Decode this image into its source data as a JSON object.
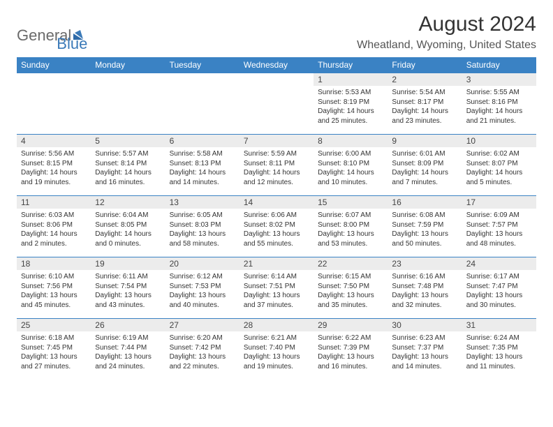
{
  "brand": {
    "part1": "General",
    "part2": "Blue"
  },
  "title": "August 2024",
  "location": "Wheatland, Wyoming, United States",
  "colors": {
    "header_bg": "#3a82c4",
    "header_text": "#ffffff",
    "daynum_bg": "#ececec",
    "border": "#3a82c4",
    "logo_gray": "#6a6a6a",
    "logo_blue": "#3b7ab8"
  },
  "weekdays": [
    "Sunday",
    "Monday",
    "Tuesday",
    "Wednesday",
    "Thursday",
    "Friday",
    "Saturday"
  ],
  "weeks": [
    [
      null,
      null,
      null,
      null,
      {
        "n": "1",
        "sunrise": "5:53 AM",
        "sunset": "8:19 PM",
        "daylight": "14 hours and 25 minutes."
      },
      {
        "n": "2",
        "sunrise": "5:54 AM",
        "sunset": "8:17 PM",
        "daylight": "14 hours and 23 minutes."
      },
      {
        "n": "3",
        "sunrise": "5:55 AM",
        "sunset": "8:16 PM",
        "daylight": "14 hours and 21 minutes."
      }
    ],
    [
      {
        "n": "4",
        "sunrise": "5:56 AM",
        "sunset": "8:15 PM",
        "daylight": "14 hours and 19 minutes."
      },
      {
        "n": "5",
        "sunrise": "5:57 AM",
        "sunset": "8:14 PM",
        "daylight": "14 hours and 16 minutes."
      },
      {
        "n": "6",
        "sunrise": "5:58 AM",
        "sunset": "8:13 PM",
        "daylight": "14 hours and 14 minutes."
      },
      {
        "n": "7",
        "sunrise": "5:59 AM",
        "sunset": "8:11 PM",
        "daylight": "14 hours and 12 minutes."
      },
      {
        "n": "8",
        "sunrise": "6:00 AM",
        "sunset": "8:10 PM",
        "daylight": "14 hours and 10 minutes."
      },
      {
        "n": "9",
        "sunrise": "6:01 AM",
        "sunset": "8:09 PM",
        "daylight": "14 hours and 7 minutes."
      },
      {
        "n": "10",
        "sunrise": "6:02 AM",
        "sunset": "8:07 PM",
        "daylight": "14 hours and 5 minutes."
      }
    ],
    [
      {
        "n": "11",
        "sunrise": "6:03 AM",
        "sunset": "8:06 PM",
        "daylight": "14 hours and 2 minutes."
      },
      {
        "n": "12",
        "sunrise": "6:04 AM",
        "sunset": "8:05 PM",
        "daylight": "14 hours and 0 minutes."
      },
      {
        "n": "13",
        "sunrise": "6:05 AM",
        "sunset": "8:03 PM",
        "daylight": "13 hours and 58 minutes."
      },
      {
        "n": "14",
        "sunrise": "6:06 AM",
        "sunset": "8:02 PM",
        "daylight": "13 hours and 55 minutes."
      },
      {
        "n": "15",
        "sunrise": "6:07 AM",
        "sunset": "8:00 PM",
        "daylight": "13 hours and 53 minutes."
      },
      {
        "n": "16",
        "sunrise": "6:08 AM",
        "sunset": "7:59 PM",
        "daylight": "13 hours and 50 minutes."
      },
      {
        "n": "17",
        "sunrise": "6:09 AM",
        "sunset": "7:57 PM",
        "daylight": "13 hours and 48 minutes."
      }
    ],
    [
      {
        "n": "18",
        "sunrise": "6:10 AM",
        "sunset": "7:56 PM",
        "daylight": "13 hours and 45 minutes."
      },
      {
        "n": "19",
        "sunrise": "6:11 AM",
        "sunset": "7:54 PM",
        "daylight": "13 hours and 43 minutes."
      },
      {
        "n": "20",
        "sunrise": "6:12 AM",
        "sunset": "7:53 PM",
        "daylight": "13 hours and 40 minutes."
      },
      {
        "n": "21",
        "sunrise": "6:14 AM",
        "sunset": "7:51 PM",
        "daylight": "13 hours and 37 minutes."
      },
      {
        "n": "22",
        "sunrise": "6:15 AM",
        "sunset": "7:50 PM",
        "daylight": "13 hours and 35 minutes."
      },
      {
        "n": "23",
        "sunrise": "6:16 AM",
        "sunset": "7:48 PM",
        "daylight": "13 hours and 32 minutes."
      },
      {
        "n": "24",
        "sunrise": "6:17 AM",
        "sunset": "7:47 PM",
        "daylight": "13 hours and 30 minutes."
      }
    ],
    [
      {
        "n": "25",
        "sunrise": "6:18 AM",
        "sunset": "7:45 PM",
        "daylight": "13 hours and 27 minutes."
      },
      {
        "n": "26",
        "sunrise": "6:19 AM",
        "sunset": "7:44 PM",
        "daylight": "13 hours and 24 minutes."
      },
      {
        "n": "27",
        "sunrise": "6:20 AM",
        "sunset": "7:42 PM",
        "daylight": "13 hours and 22 minutes."
      },
      {
        "n": "28",
        "sunrise": "6:21 AM",
        "sunset": "7:40 PM",
        "daylight": "13 hours and 19 minutes."
      },
      {
        "n": "29",
        "sunrise": "6:22 AM",
        "sunset": "7:39 PM",
        "daylight": "13 hours and 16 minutes."
      },
      {
        "n": "30",
        "sunrise": "6:23 AM",
        "sunset": "7:37 PM",
        "daylight": "13 hours and 14 minutes."
      },
      {
        "n": "31",
        "sunrise": "6:24 AM",
        "sunset": "7:35 PM",
        "daylight": "13 hours and 11 minutes."
      }
    ]
  ],
  "labels": {
    "sunrise": "Sunrise:",
    "sunset": "Sunset:",
    "daylight": "Daylight:"
  }
}
